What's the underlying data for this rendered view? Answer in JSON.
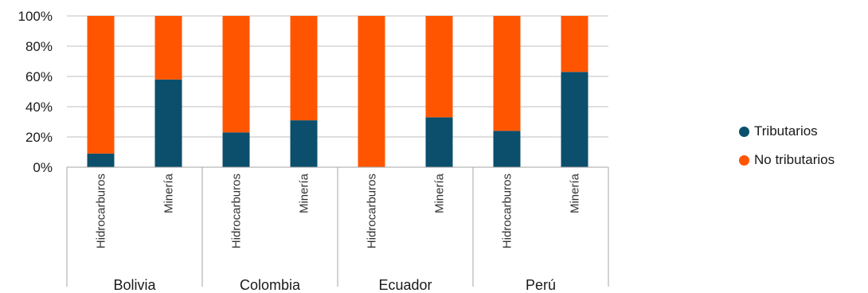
{
  "chart_data": {
    "type": "bar",
    "stacked": true,
    "percent_axis": true,
    "ylim": [
      0,
      100
    ],
    "yticks": [
      "0%",
      "20%",
      "40%",
      "60%",
      "80%",
      "100%"
    ],
    "groups": [
      {
        "name": "Bolivia",
        "categories": [
          "Hidrocarburos",
          "Minería"
        ]
      },
      {
        "name": "Colombia",
        "categories": [
          "Hidrocarburos",
          "Minería"
        ]
      },
      {
        "name": "Ecuador",
        "categories": [
          "Hidrocarburos",
          "Minería"
        ]
      },
      {
        "name": "Perú",
        "categories": [
          "Hidrocarburos",
          "Minería"
        ]
      }
    ],
    "series": [
      {
        "name": "Tributarios",
        "color": "#0b4f6c",
        "values": [
          9,
          58,
          23,
          31,
          0,
          33,
          24,
          63
        ]
      },
      {
        "name": "No tributarios",
        "color": "#ff5500",
        "values": [
          91,
          42,
          77,
          69,
          100,
          67,
          76,
          37
        ]
      }
    ],
    "grid": true,
    "legend_position": "right"
  }
}
